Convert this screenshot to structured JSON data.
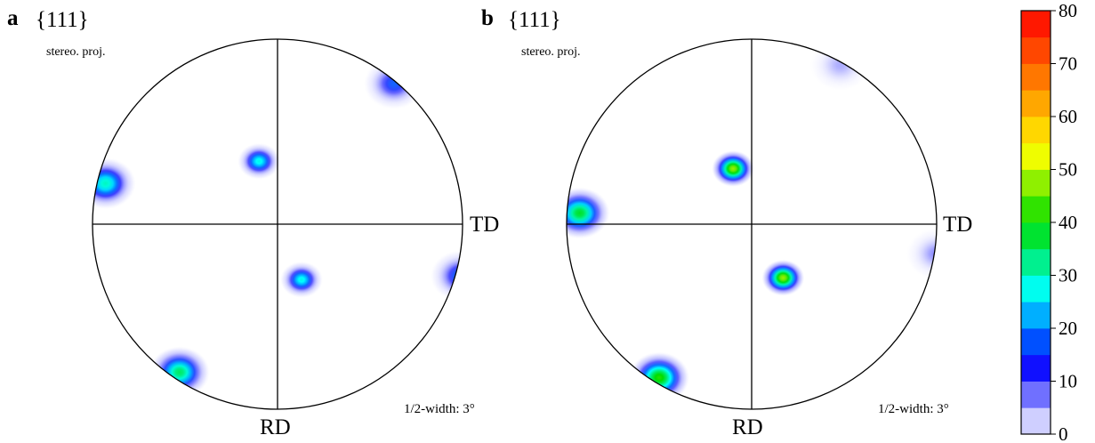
{
  "chart_data": [
    {
      "type": "pole_figure",
      "panel_label": "a",
      "title": "{111}",
      "projection": "stereo. proj.",
      "axis_labels": {
        "right": "TD",
        "bottom": "RD"
      },
      "half_width": "1/2-width: 3°",
      "poles": [
        {
          "x": -0.1,
          "y": 0.34,
          "peak": 28
        },
        {
          "x": 0.13,
          "y": -0.3,
          "peak": 28
        },
        {
          "x": -0.93,
          "y": 0.22,
          "peak": 30
        },
        {
          "x": -0.53,
          "y": -0.8,
          "peak": 35
        },
        {
          "x": 0.99,
          "y": -0.28,
          "peak": 20
        },
        {
          "x": 0.63,
          "y": 0.76,
          "peak": 18
        }
      ]
    },
    {
      "type": "pole_figure",
      "panel_label": "b",
      "title": "{111}",
      "projection": "stereo. proj.",
      "axis_labels": {
        "right": "TD",
        "bottom": "RD"
      },
      "half_width": "1/2-width: 3°",
      "poles": [
        {
          "x": -0.1,
          "y": 0.3,
          "peak": 48
        },
        {
          "x": 0.17,
          "y": -0.29,
          "peak": 48
        },
        {
          "x": -0.93,
          "y": 0.06,
          "peak": 38
        },
        {
          "x": -0.5,
          "y": -0.83,
          "peak": 42
        },
        {
          "x": 1.0,
          "y": -0.16,
          "peak": 10
        },
        {
          "x": 0.48,
          "y": 0.86,
          "peak": 8
        }
      ]
    }
  ],
  "colorbar": {
    "min": 0,
    "max": 80,
    "ticks": [
      "0",
      "10",
      "20",
      "30",
      "40",
      "50",
      "60",
      "70",
      "80"
    ],
    "colors": [
      "#ffffff",
      "#0000ff",
      "#00ffff",
      "#00dd00",
      "#ffff00",
      "#ff7f00",
      "#ff0000"
    ]
  }
}
